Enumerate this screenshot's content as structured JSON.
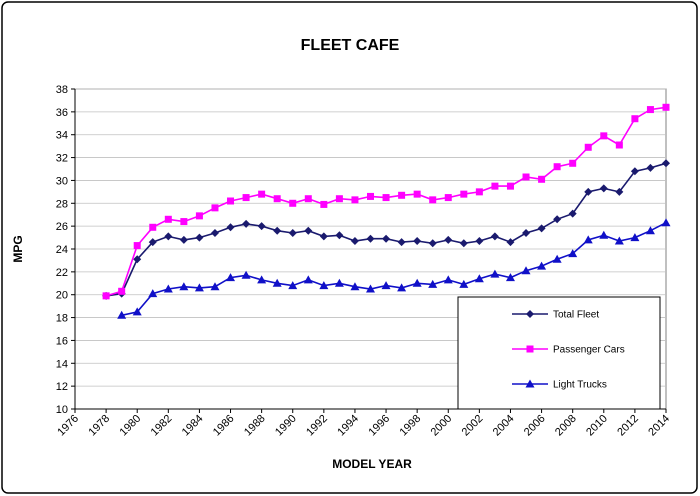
{
  "chart_data": {
    "type": "line",
    "title": "FLEET CAFE",
    "xlabel": "MODEL YEAR",
    "ylabel": "MPG",
    "xlim": [
      1976,
      2014
    ],
    "ylim": [
      10,
      38
    ],
    "x_ticks": [
      "1976",
      "1978",
      "1980",
      "1982",
      "1984",
      "1986",
      "1988",
      "1990",
      "1992",
      "1994",
      "1996",
      "1998",
      "2000",
      "2002",
      "2004",
      "2006",
      "2008",
      "2010",
      "2012",
      "2014"
    ],
    "y_ticks": [
      "10",
      "12",
      "14",
      "16",
      "18",
      "20",
      "22",
      "24",
      "26",
      "28",
      "30",
      "32",
      "34",
      "36",
      "38"
    ],
    "grid": "horizontal",
    "legend_position": "bottom-right",
    "series": [
      {
        "name": "Total Fleet",
        "color": "#1a1a6e",
        "marker": "diamond",
        "x": [
          1978,
          1979,
          1980,
          1981,
          1982,
          1983,
          1984,
          1985,
          1986,
          1987,
          1988,
          1989,
          1990,
          1991,
          1992,
          1993,
          1994,
          1995,
          1996,
          1997,
          1998,
          1999,
          2000,
          2001,
          2002,
          2003,
          2004,
          2005,
          2006,
          2007,
          2008,
          2009,
          2010,
          2011,
          2012,
          2013,
          2014
        ],
        "values": [
          19.9,
          20.1,
          23.1,
          24.6,
          25.1,
          24.8,
          25.0,
          25.4,
          25.9,
          26.2,
          26.0,
          25.6,
          25.4,
          25.6,
          25.1,
          25.2,
          24.7,
          24.9,
          24.9,
          24.6,
          24.7,
          24.5,
          24.8,
          24.5,
          24.7,
          25.1,
          24.6,
          25.4,
          25.8,
          26.6,
          27.1,
          29.0,
          29.3,
          29.0,
          30.8,
          31.1,
          31.5
        ]
      },
      {
        "name": "Passenger Cars",
        "color": "#ff00ff",
        "marker": "square",
        "x": [
          1978,
          1979,
          1980,
          1981,
          1982,
          1983,
          1984,
          1985,
          1986,
          1987,
          1988,
          1989,
          1990,
          1991,
          1992,
          1993,
          1994,
          1995,
          1996,
          1997,
          1998,
          1999,
          2000,
          2001,
          2002,
          2003,
          2004,
          2005,
          2006,
          2007,
          2008,
          2009,
          2010,
          2011,
          2012,
          2013,
          2014
        ],
        "values": [
          19.9,
          20.3,
          24.3,
          25.9,
          26.6,
          26.4,
          26.9,
          27.6,
          28.2,
          28.5,
          28.8,
          28.4,
          28.0,
          28.4,
          27.9,
          28.4,
          28.3,
          28.6,
          28.5,
          28.7,
          28.8,
          28.3,
          28.5,
          28.8,
          29.0,
          29.5,
          29.5,
          30.3,
          30.1,
          31.2,
          31.5,
          32.9,
          33.9,
          33.1,
          35.4,
          36.2,
          36.4
        ]
      },
      {
        "name": "Light Trucks",
        "color": "#1010c8",
        "marker": "triangle",
        "x": [
          1979,
          1980,
          1981,
          1982,
          1983,
          1984,
          1985,
          1986,
          1987,
          1988,
          1989,
          1990,
          1991,
          1992,
          1993,
          1994,
          1995,
          1996,
          1997,
          1998,
          1999,
          2000,
          2001,
          2002,
          2003,
          2004,
          2005,
          2006,
          2007,
          2008,
          2009,
          2010,
          2011,
          2012,
          2013,
          2014
        ],
        "values": [
          18.2,
          18.5,
          20.1,
          20.5,
          20.7,
          20.6,
          20.7,
          21.5,
          21.7,
          21.3,
          21.0,
          20.8,
          21.3,
          20.8,
          21.0,
          20.7,
          20.5,
          20.8,
          20.6,
          21.0,
          20.9,
          21.3,
          20.9,
          21.4,
          21.8,
          21.5,
          22.1,
          22.5,
          23.1,
          23.6,
          24.8,
          25.2,
          24.7,
          25.0,
          25.6,
          26.3
        ]
      }
    ]
  }
}
